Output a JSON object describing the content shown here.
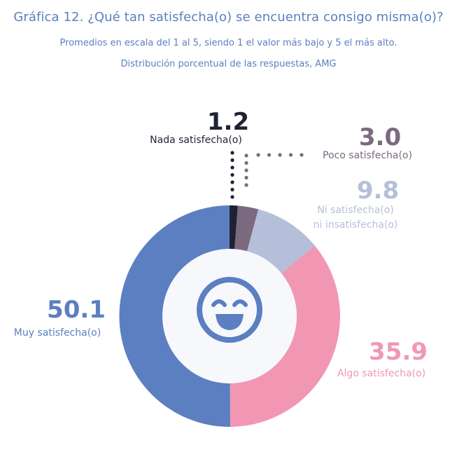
{
  "title": "Gráfica 12. ¿Qué tan satisfecha(o) se encuentra consigo misma(o)?",
  "subtitle": "Promedios en escala del 1 al 5, siendo 1 el valor más bajo y 5 el más alto.",
  "note": "Distribución porcentual de las respuestas, AMG",
  "chart_data": {
    "type": "pie",
    "style": "donut",
    "slices": [
      {
        "label": "Nada satisfecha(o)",
        "value": 1.2,
        "display": "1.2",
        "color": "#1f2233"
      },
      {
        "label": "Poco satisfecha(o)",
        "value": 3.0,
        "display": "3.0",
        "color": "#7b6a80"
      },
      {
        "label": "Ni satisfecha(o) ni insatisfecha(o)",
        "label_lines": [
          "Ni satisfecha(o)",
          "ni insatisfecha(o)"
        ],
        "value": 9.8,
        "display": "9.8",
        "color": "#b5bfd9"
      },
      {
        "label": "Algo satisfecha(o)",
        "value": 35.9,
        "display": "35.9",
        "color": "#f197b4"
      },
      {
        "label": "Muy satisfecha(o)",
        "value": 50.1,
        "display": "50.1",
        "color": "#5b7fc0"
      }
    ],
    "center_icon": "smiling-face-icon",
    "center_icon_color": "#5b7fc0"
  }
}
